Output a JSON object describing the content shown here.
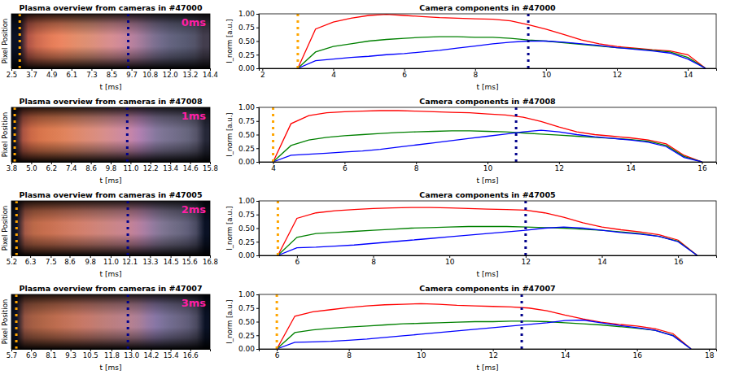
{
  "chart_data": [
    {
      "type": "image",
      "title": "Plasma overview from cameras in #47000",
      "xlabel": "t [ms]",
      "ylabel": "Pixel Position",
      "xlim": [
        2.5,
        14.4
      ],
      "xticks": [
        2.5,
        3.7,
        4.9,
        6.1,
        7.3,
        8.5,
        9.7,
        10.8,
        {
          "value": 12,
          "label": "12.0"
        },
        13.2,
        14.4
      ],
      "tick_labels": "x",
      "annotation": "0ms",
      "vlines": [
        {
          "value": 3.0,
          "color": "#ffa500"
        },
        {
          "value": 9.5,
          "color": "#00008b"
        }
      ]
    },
    {
      "type": "line",
      "title": "Camera components in #47000",
      "xlabel": "t [ms]",
      "ylabel": "I_norm [a.u.]",
      "xlim": [
        1.9,
        14.8
      ],
      "xticks": [
        2,
        4,
        6,
        8,
        10,
        12,
        14
      ],
      "ylim": [
        0,
        1.0
      ],
      "yticks": [
        {
          "value": 0,
          "label": "0.00"
        },
        0.25,
        {
          "value": 0.5,
          "label": "0.50"
        },
        0.75,
        {
          "value": 1,
          "label": "1.00"
        }
      ],
      "x": [
        3.0,
        3.5,
        4.0,
        4.5,
        5.0,
        5.5,
        6.0,
        6.5,
        7.0,
        7.5,
        8.0,
        8.5,
        9.0,
        9.5,
        10.0,
        10.5,
        11.0,
        11.5,
        12.0,
        12.5,
        13.0,
        13.5,
        14.0,
        14.5
      ],
      "series": [
        {
          "color": "#ff0000",
          "values": [
            0,
            0.72,
            0.85,
            0.92,
            0.97,
            0.99,
            0.97,
            0.95,
            0.93,
            0.92,
            0.91,
            0.9,
            0.87,
            0.8,
            0.72,
            0.62,
            0.52,
            0.45,
            0.4,
            0.37,
            0.34,
            0.32,
            0.25,
            0
          ]
        },
        {
          "color": "#008000",
          "values": [
            0,
            0.3,
            0.4,
            0.45,
            0.5,
            0.53,
            0.55,
            0.57,
            0.58,
            0.58,
            0.57,
            0.57,
            0.55,
            0.52,
            0.5,
            0.47,
            0.44,
            0.41,
            0.38,
            0.36,
            0.33,
            0.3,
            0.2,
            0
          ]
        },
        {
          "color": "#0000ff",
          "values": [
            0,
            0.14,
            0.17,
            0.2,
            0.22,
            0.25,
            0.27,
            0.3,
            0.33,
            0.37,
            0.41,
            0.45,
            0.48,
            0.5,
            0.5,
            0.48,
            0.45,
            0.42,
            0.38,
            0.35,
            0.32,
            0.28,
            0.17,
            0
          ]
        }
      ],
      "vlines": [
        {
          "value": 3.0,
          "color": "#ffa500"
        },
        {
          "value": 9.5,
          "color": "#00008b"
        }
      ]
    },
    {
      "type": "image",
      "title": "Plasma overview from cameras in #47008",
      "xlabel": "t [ms]",
      "ylabel": "Pixel Position",
      "xlim": [
        3.8,
        15.8
      ],
      "xticks": [
        3.8,
        {
          "value": 5,
          "label": "5.0"
        },
        6.2,
        7.4,
        8.6,
        9.8,
        {
          "value": 11,
          "label": "11.0"
        },
        12.2,
        13.4,
        14.6,
        15.8
      ],
      "tick_labels": "x",
      "annotation": "1ms",
      "vlines": [
        {
          "value": 4.0,
          "color": "#ffa500"
        },
        {
          "value": 10.8,
          "color": "#00008b"
        }
      ]
    },
    {
      "type": "line",
      "title": "Camera components in #47008",
      "xlabel": "t [ms]",
      "ylabel": "I_norm [a.u.]",
      "xlim": [
        3.6,
        16.4
      ],
      "xticks": [
        4,
        6,
        8,
        10,
        12,
        14,
        16
      ],
      "ylim": [
        0,
        1.0
      ],
      "yticks": [
        {
          "value": 0,
          "label": "0.00"
        },
        0.25,
        {
          "value": 0.5,
          "label": "0.50"
        },
        0.75,
        {
          "value": 1,
          "label": "1.00"
        }
      ],
      "x": [
        4.0,
        4.5,
        5.0,
        5.5,
        6.0,
        6.5,
        7.0,
        7.5,
        8.0,
        8.5,
        9.0,
        9.5,
        10.0,
        10.5,
        11.0,
        11.5,
        12.0,
        12.5,
        13.0,
        13.5,
        14.0,
        14.5,
        15.0,
        15.5,
        16.0
      ],
      "series": [
        {
          "color": "#ff0000",
          "values": [
            0,
            0.7,
            0.85,
            0.9,
            0.92,
            0.93,
            0.94,
            0.94,
            0.93,
            0.92,
            0.91,
            0.9,
            0.88,
            0.86,
            0.82,
            0.74,
            0.64,
            0.55,
            0.5,
            0.47,
            0.44,
            0.4,
            0.33,
            0.12,
            0
          ]
        },
        {
          "color": "#008000",
          "values": [
            0,
            0.3,
            0.4,
            0.45,
            0.48,
            0.5,
            0.52,
            0.54,
            0.55,
            0.56,
            0.57,
            0.57,
            0.56,
            0.55,
            0.53,
            0.51,
            0.49,
            0.47,
            0.45,
            0.43,
            0.41,
            0.38,
            0.3,
            0.1,
            0
          ]
        },
        {
          "color": "#0000ff",
          "values": [
            0,
            0.12,
            0.14,
            0.16,
            0.18,
            0.2,
            0.23,
            0.27,
            0.31,
            0.35,
            0.39,
            0.43,
            0.47,
            0.51,
            0.55,
            0.58,
            0.55,
            0.5,
            0.46,
            0.43,
            0.4,
            0.36,
            0.28,
            0.08,
            0
          ]
        }
      ],
      "vlines": [
        {
          "value": 4.0,
          "color": "#ffa500"
        },
        {
          "value": 10.8,
          "color": "#00008b"
        }
      ]
    },
    {
      "type": "image",
      "title": "Plasma overview from cameras in #47005",
      "xlabel": "t [ms]",
      "ylabel": "Pixel Position",
      "xlim": [
        5.2,
        16.8
      ],
      "xticks": [
        5.2,
        6.3,
        7.5,
        8.6,
        9.8,
        {
          "value": 11,
          "label": "11.0"
        },
        12.1,
        13.3,
        14.5,
        15.6,
        16.8
      ],
      "tick_labels": "x",
      "annotation": "2ms",
      "vlines": [
        {
          "value": 5.5,
          "color": "#ffa500"
        },
        {
          "value": 12.0,
          "color": "#00008b"
        }
      ]
    },
    {
      "type": "line",
      "title": "Camera components in #47005",
      "xlabel": "t [ms]",
      "ylabel": "I_norm [a.u.]",
      "xlim": [
        5.0,
        17.0
      ],
      "xticks": [
        6,
        8,
        10,
        12,
        14,
        16
      ],
      "ylim": [
        0,
        1.0
      ],
      "yticks": [
        {
          "value": 0,
          "label": "0.00"
        },
        0.25,
        {
          "value": 0.5,
          "label": "0.50"
        },
        0.75,
        {
          "value": 1,
          "label": "1.00"
        }
      ],
      "x": [
        5.5,
        6.0,
        6.5,
        7.0,
        7.5,
        8.0,
        8.5,
        9.0,
        9.5,
        10.0,
        10.5,
        11.0,
        11.5,
        12.0,
        12.5,
        13.0,
        13.5,
        14.0,
        14.5,
        15.0,
        15.5,
        16.0,
        16.5
      ],
      "series": [
        {
          "color": "#ff0000",
          "values": [
            0,
            0.68,
            0.78,
            0.82,
            0.84,
            0.86,
            0.87,
            0.88,
            0.88,
            0.87,
            0.86,
            0.85,
            0.84,
            0.83,
            0.78,
            0.7,
            0.6,
            0.52,
            0.47,
            0.43,
            0.38,
            0.28,
            0
          ]
        },
        {
          "color": "#008000",
          "values": [
            0,
            0.33,
            0.4,
            0.42,
            0.44,
            0.46,
            0.48,
            0.5,
            0.51,
            0.52,
            0.53,
            0.53,
            0.53,
            0.52,
            0.51,
            0.5,
            0.48,
            0.46,
            0.43,
            0.4,
            0.35,
            0.26,
            0
          ]
        },
        {
          "color": "#0000ff",
          "values": [
            0,
            0.14,
            0.15,
            0.17,
            0.19,
            0.22,
            0.25,
            0.28,
            0.31,
            0.34,
            0.37,
            0.4,
            0.43,
            0.46,
            0.5,
            0.52,
            0.5,
            0.46,
            0.42,
            0.39,
            0.35,
            0.25,
            0
          ]
        }
      ],
      "vlines": [
        {
          "value": 5.5,
          "color": "#ffa500"
        },
        {
          "value": 12.0,
          "color": "#00008b"
        }
      ]
    },
    {
      "type": "image",
      "title": "Plasma overview from cameras in #47007",
      "xlabel": "t [ms]",
      "ylabel": "Pixel Position",
      "xlim": [
        5.7,
        17.8
      ],
      "xticks": [
        5.7,
        6.9,
        8.1,
        9.3,
        10.5,
        11.8,
        {
          "value": 13,
          "label": "13.0"
        },
        14.2,
        15.4,
        16.6
      ],
      "tick_labels": "x",
      "annotation": "3ms",
      "vlines": [
        {
          "value": 6.0,
          "color": "#ffa500"
        },
        {
          "value": 12.8,
          "color": "#00008b"
        }
      ]
    },
    {
      "type": "line",
      "title": "Camera components in #47007",
      "xlabel": "t [ms]",
      "ylabel": "I_norm [a.u.]",
      "xlim": [
        5.5,
        18.2
      ],
      "xticks": [
        6,
        8,
        10,
        12,
        14,
        16,
        18
      ],
      "ylim": [
        0,
        1.0
      ],
      "yticks": [
        {
          "value": 0,
          "label": "0.00"
        },
        0.25,
        {
          "value": 0.5,
          "label": "0.50"
        },
        0.75,
        {
          "value": 1,
          "label": "1.00"
        }
      ],
      "x": [
        6.0,
        6.5,
        7.0,
        7.5,
        8.0,
        8.5,
        9.0,
        9.5,
        10.0,
        10.5,
        11.0,
        11.5,
        12.0,
        12.5,
        13.0,
        13.5,
        14.0,
        14.5,
        15.0,
        15.5,
        16.0,
        16.5,
        17.0,
        17.5
      ],
      "series": [
        {
          "color": "#ff0000",
          "values": [
            0,
            0.6,
            0.68,
            0.72,
            0.76,
            0.79,
            0.81,
            0.82,
            0.83,
            0.82,
            0.8,
            0.79,
            0.78,
            0.77,
            0.75,
            0.7,
            0.62,
            0.55,
            0.49,
            0.45,
            0.42,
            0.37,
            0.28,
            0
          ]
        },
        {
          "color": "#008000",
          "values": [
            0,
            0.3,
            0.35,
            0.38,
            0.4,
            0.42,
            0.44,
            0.46,
            0.47,
            0.48,
            0.49,
            0.5,
            0.5,
            0.51,
            0.51,
            0.5,
            0.48,
            0.46,
            0.44,
            0.41,
            0.38,
            0.34,
            0.25,
            0
          ]
        },
        {
          "color": "#0000ff",
          "values": [
            0,
            0.12,
            0.13,
            0.14,
            0.16,
            0.18,
            0.21,
            0.24,
            0.27,
            0.3,
            0.33,
            0.36,
            0.39,
            0.42,
            0.45,
            0.48,
            0.52,
            0.53,
            0.48,
            0.43,
            0.39,
            0.34,
            0.24,
            0
          ]
        }
      ],
      "vlines": [
        {
          "value": 6.0,
          "color": "#ffa500"
        },
        {
          "value": 12.8,
          "color": "#00008b"
        }
      ]
    }
  ]
}
